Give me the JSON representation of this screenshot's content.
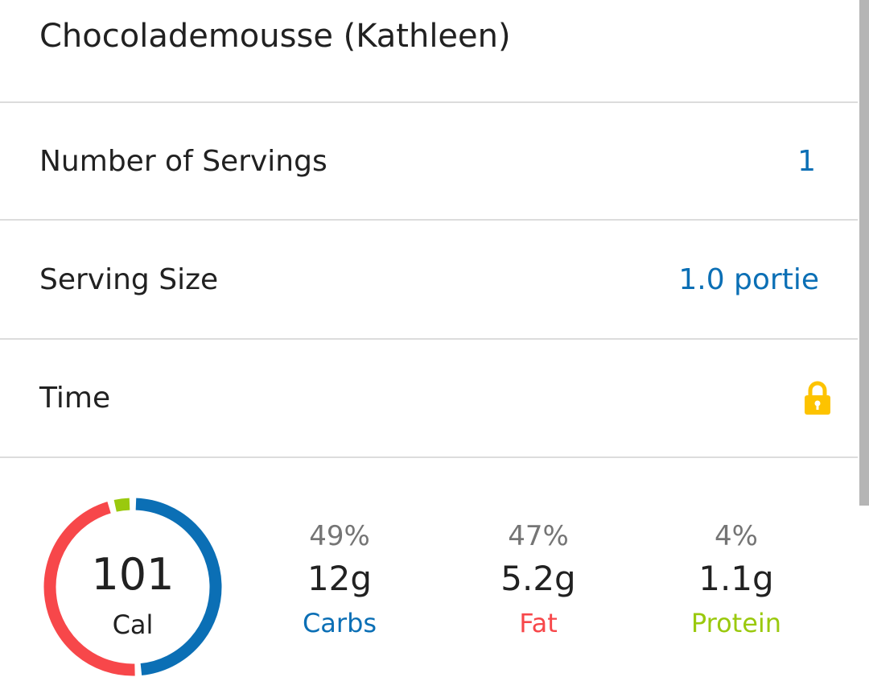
{
  "recipe": {
    "title": "Chocolademousse (Kathleen)"
  },
  "fields": [
    {
      "label": "Number of Servings",
      "value": "1"
    },
    {
      "label": "Serving Size",
      "value": "1.0 portie"
    },
    {
      "label": "Time",
      "icon": "lock-icon"
    }
  ],
  "nutrition": {
    "calories": "101",
    "calories_label": "Cal",
    "macros": [
      {
        "percent": "49%",
        "grams": "12g",
        "name": "Carbs",
        "color": "#0b6fb5",
        "share": 49
      },
      {
        "percent": "47%",
        "grams": "5.2g",
        "name": "Fat",
        "color": "#f7474a",
        "share": 47
      },
      {
        "percent": "4%",
        "grams": "1.1g",
        "name": "Protein",
        "color": "#9ac90e",
        "share": 4
      }
    ]
  },
  "colors": {
    "accent": "#0b6fb5",
    "lock": "#fdc300"
  }
}
